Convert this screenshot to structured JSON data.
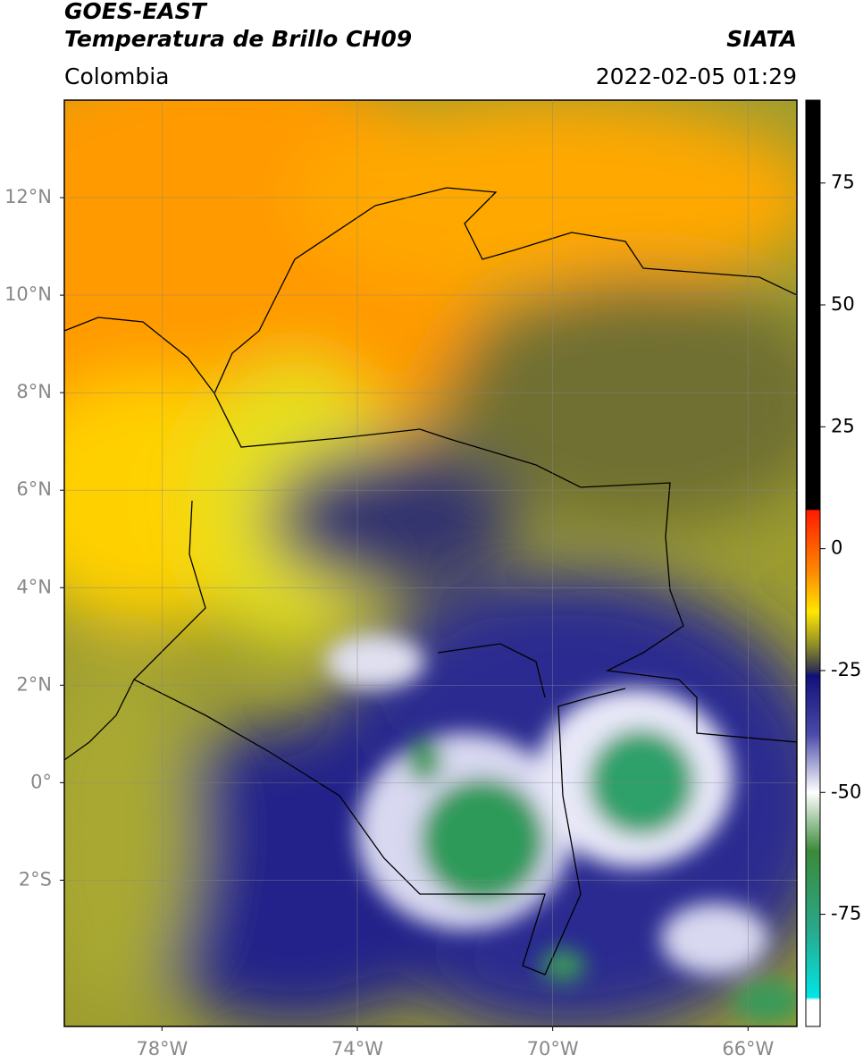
{
  "header": {
    "satellite": "GOES-EAST",
    "product": "Temperatura de Brillo CH09",
    "source": "SIATA",
    "region": "Colombia",
    "datetime": "2022-02-05 01:29"
  },
  "map": {
    "lon_range": [
      -80,
      -65
    ],
    "lat_range": [
      -5,
      14
    ],
    "lat_ticks": [
      {
        "value": 12,
        "label": "12°N"
      },
      {
        "value": 10,
        "label": "10°N"
      },
      {
        "value": 8,
        "label": "8°N"
      },
      {
        "value": 6,
        "label": "6°N"
      },
      {
        "value": 4,
        "label": "4°N"
      },
      {
        "value": 2,
        "label": "2°N"
      },
      {
        "value": 0,
        "label": "0°"
      },
      {
        "value": -2,
        "label": "2°S"
      }
    ],
    "lon_ticks": [
      {
        "value": -78,
        "label": "78°W"
      },
      {
        "value": -74,
        "label": "74°W"
      },
      {
        "value": -70,
        "label": "70°W"
      },
      {
        "value": -66,
        "label": "66°W"
      }
    ],
    "grid": true
  },
  "colorbar": {
    "range": [
      -98,
      92
    ],
    "ticks": [
      75,
      50,
      25,
      0,
      -25,
      -50,
      -75
    ],
    "stops": [
      {
        "value": 92,
        "color": "#000000"
      },
      {
        "value": 8,
        "color": "#000000"
      },
      {
        "value": 7.9,
        "color": "#ff1a00"
      },
      {
        "value": -5,
        "color": "#ff8c00"
      },
      {
        "value": -13,
        "color": "#ffe600"
      },
      {
        "value": -20,
        "color": "#8a8a2a"
      },
      {
        "value": -25,
        "color": "#303050"
      },
      {
        "value": -26,
        "color": "#10107a"
      },
      {
        "value": -38,
        "color": "#4a4aa8"
      },
      {
        "value": -50,
        "color": "#ffffff"
      },
      {
        "value": -62,
        "color": "#3a8a3a"
      },
      {
        "value": -78,
        "color": "#2aa88a"
      },
      {
        "value": -92,
        "color": "#00e5e5"
      },
      {
        "value": -92.6,
        "color": "#ffffff"
      },
      {
        "value": -98,
        "color": "#ffffff"
      }
    ]
  }
}
